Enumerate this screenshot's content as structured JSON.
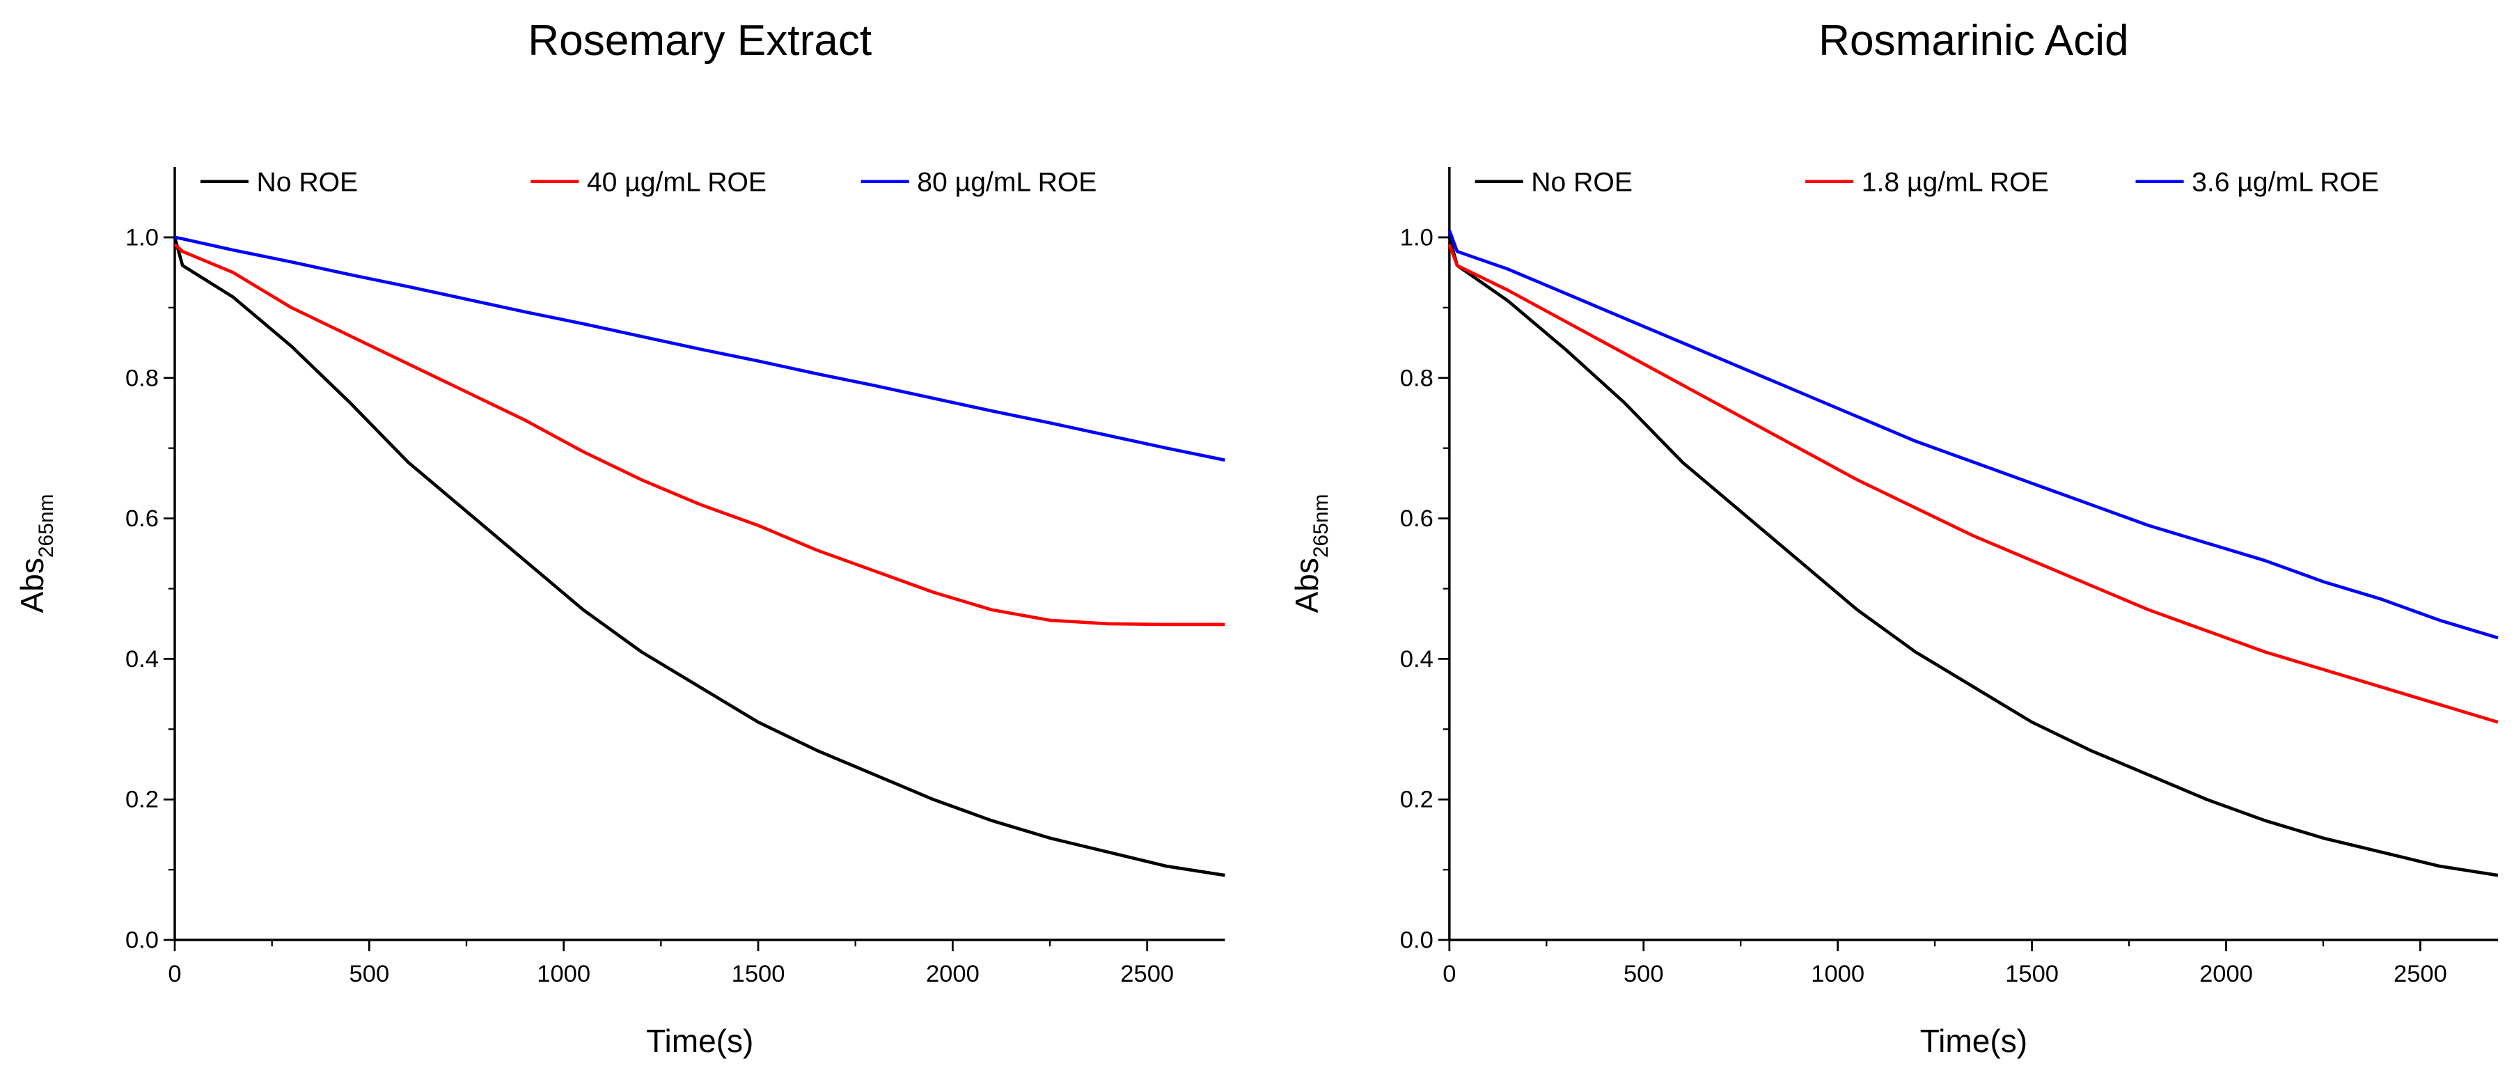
{
  "chart_data": [
    {
      "type": "line",
      "title": "Rosemary Extract",
      "xlabel": "Time(s)",
      "ylabel": "Abs",
      "ylabel_subscript": "265nm",
      "x": [
        0,
        20,
        150,
        300,
        450,
        600,
        750,
        900,
        1050,
        1200,
        1350,
        1500,
        1650,
        1800,
        1950,
        2100,
        2250,
        2400,
        2550,
        2700
      ],
      "series": [
        {
          "name": "No ROE",
          "color": "#000000",
          "values": [
            1.0,
            0.96,
            0.915,
            0.845,
            0.765,
            0.68,
            0.61,
            0.54,
            0.47,
            0.41,
            0.36,
            0.31,
            0.27,
            0.235,
            0.2,
            0.17,
            0.145,
            0.125,
            0.105,
            0.092
          ]
        },
        {
          "name": "40 µg/mL ROE",
          "color": "#ff0000",
          "values": [
            0.99,
            0.98,
            0.95,
            0.9,
            0.86,
            0.82,
            0.78,
            0.74,
            0.695,
            0.655,
            0.62,
            0.59,
            0.555,
            0.525,
            0.495,
            0.47,
            0.455,
            0.45,
            0.449,
            0.449
          ]
        },
        {
          "name": "80 µg/mL ROE",
          "color": "#0000ff",
          "values": [
            1.0,
            0.998,
            0.982,
            0.965,
            0.947,
            0.93,
            0.912,
            0.894,
            0.877,
            0.859,
            0.841,
            0.824,
            0.806,
            0.789,
            0.771,
            0.753,
            0.736,
            0.718,
            0.7,
            0.683
          ]
        }
      ],
      "xlim": [
        0,
        2700
      ],
      "ylim": [
        0,
        1.1
      ],
      "xticks": [
        0,
        500,
        1000,
        1500,
        2000,
        2500
      ],
      "xminorticks": [
        250,
        750,
        1250,
        1750,
        2250
      ],
      "yticks": [
        {
          "value": 0,
          "label": "0.0"
        },
        {
          "value": 0.2,
          "label": "0.2"
        },
        {
          "value": 0.4,
          "label": "0.4"
        },
        {
          "value": 0.6,
          "label": "0.6"
        },
        {
          "value": 0.8,
          "label": "0.8"
        },
        {
          "value": 1,
          "label": "1.0"
        }
      ],
      "yminorticks": [
        0.1,
        0.3,
        0.5,
        0.7,
        0.9
      ],
      "legend": "top",
      "grid": false
    },
    {
      "type": "line",
      "title": "Rosmarinic Acid",
      "xlabel": "Time(s)",
      "ylabel": "Abs",
      "ylabel_subscript": "265nm",
      "x": [
        0,
        20,
        150,
        300,
        450,
        600,
        750,
        900,
        1050,
        1200,
        1350,
        1500,
        1650,
        1800,
        1950,
        2100,
        2250,
        2400,
        2550,
        2700
      ],
      "series": [
        {
          "name": "No ROE",
          "color": "#000000",
          "values": [
            1.0,
            0.96,
            0.91,
            0.84,
            0.765,
            0.68,
            0.61,
            0.54,
            0.47,
            0.41,
            0.36,
            0.31,
            0.27,
            0.235,
            0.2,
            0.17,
            0.145,
            0.125,
            0.105,
            0.092
          ]
        },
        {
          "name": "1.8 µg/mL ROE",
          "color": "#ff0000",
          "values": [
            0.99,
            0.96,
            0.925,
            0.88,
            0.835,
            0.79,
            0.745,
            0.7,
            0.655,
            0.615,
            0.575,
            0.54,
            0.505,
            0.47,
            0.44,
            0.41,
            0.385,
            0.36,
            0.335,
            0.31
          ]
        },
        {
          "name": "3.6 µg/mL ROE",
          "color": "#0000ff",
          "values": [
            1.01,
            0.98,
            0.955,
            0.92,
            0.885,
            0.85,
            0.815,
            0.78,
            0.745,
            0.71,
            0.68,
            0.65,
            0.62,
            0.59,
            0.565,
            0.54,
            0.51,
            0.485,
            0.455,
            0.43
          ]
        }
      ],
      "xlim": [
        0,
        2700
      ],
      "ylim": [
        0,
        1.1
      ],
      "xticks": [
        0,
        500,
        1000,
        1500,
        2000,
        2500
      ],
      "xminorticks": [
        250,
        750,
        1250,
        1750,
        2250
      ],
      "yticks": [
        {
          "value": 0,
          "label": "0.0"
        },
        {
          "value": 0.2,
          "label": "0.2"
        },
        {
          "value": 0.4,
          "label": "0.4"
        },
        {
          "value": 0.6,
          "label": "0.6"
        },
        {
          "value": 0.8,
          "label": "0.8"
        },
        {
          "value": 1,
          "label": "1.0"
        }
      ],
      "yminorticks": [
        0.1,
        0.3,
        0.5,
        0.7,
        0.9
      ],
      "legend": "top",
      "grid": false
    }
  ]
}
